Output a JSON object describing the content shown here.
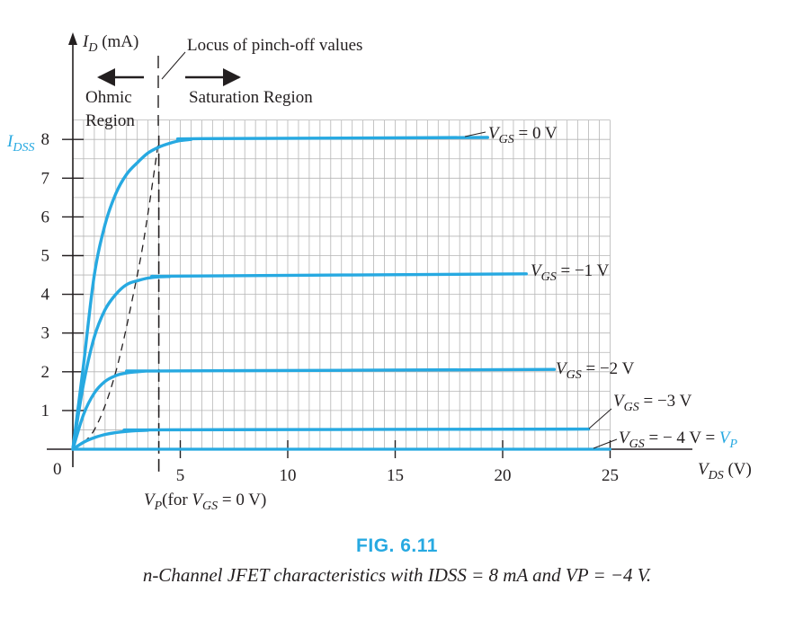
{
  "chart_data": {
    "type": "line",
    "x_axis": {
      "label_symbol": "V",
      "label_sub": "DS",
      "label_unit": " (V)",
      "ticks": [
        5,
        10,
        15,
        20,
        25
      ],
      "tick_labels": [
        "5",
        "10",
        "15",
        "20",
        "25"
      ],
      "range": [
        0,
        25
      ],
      "origin_label": "0"
    },
    "y_axis": {
      "label_symbol": "I",
      "label_sub": "D",
      "label_unit": " (mA)",
      "ticks": [
        1,
        2,
        3,
        4,
        5,
        6,
        7,
        8
      ],
      "tick_labels": [
        "1",
        "2",
        "3",
        "4",
        "5",
        "6",
        "7",
        "8"
      ],
      "range": [
        0,
        8
      ],
      "idss_label_main": "I",
      "idss_label_sub": "DSS"
    },
    "grid": true,
    "series": [
      {
        "name": "VGS = 0 V",
        "label_main": "V",
        "label_sub": "GS",
        "label_rest": " = 0 V",
        "vgs": 0,
        "saturation_current": 8,
        "x_end": 19.3,
        "x": [
          0,
          0.5,
          1,
          1.5,
          2,
          2.5,
          3,
          3.5,
          4,
          4.5,
          5,
          5.5,
          6,
          19.3
        ],
        "y": [
          0,
          2.2,
          4.5,
          5.8,
          6.6,
          7.1,
          7.4,
          7.65,
          7.8,
          7.9,
          7.97,
          8,
          8.02,
          8.05
        ]
      },
      {
        "name": "VGS = -1 V",
        "label_main": "V",
        "label_sub": "GS",
        "label_rest": " = −1 V",
        "vgs": -1,
        "saturation_current": 4.5,
        "x_end": 21.1,
        "x": [
          0,
          0.5,
          1,
          1.5,
          2,
          2.5,
          3,
          3.5,
          4,
          4.5,
          5,
          21.1
        ],
        "y": [
          0,
          1.7,
          2.9,
          3.6,
          4.0,
          4.25,
          4.35,
          4.42,
          4.45,
          4.46,
          4.47,
          4.53
        ]
      },
      {
        "name": "VGS = -2 V",
        "label_main": "V",
        "label_sub": "GS",
        "label_rest": " = −2 V",
        "vgs": -2,
        "saturation_current": 2,
        "x_end": 22.4,
        "x": [
          0,
          0.5,
          1,
          1.5,
          2,
          2.5,
          3,
          3.5,
          4,
          22.4
        ],
        "y": [
          0,
          0.9,
          1.45,
          1.75,
          1.9,
          1.97,
          2.0,
          2.02,
          2.02,
          2.06
        ]
      },
      {
        "name": "VGS = -3 V",
        "label_main": "V",
        "label_sub": "GS",
        "label_rest": " = −3 V",
        "vgs": -3,
        "saturation_current": 0.5,
        "x_end": 24.0,
        "x": [
          0,
          0.5,
          1,
          1.5,
          2,
          2.5,
          3,
          3.5,
          4,
          24.0
        ],
        "y": [
          0,
          0.18,
          0.3,
          0.38,
          0.43,
          0.46,
          0.48,
          0.49,
          0.5,
          0.52
        ]
      },
      {
        "name": "VGS = -4 V = VP",
        "label_main": "V",
        "label_sub": "GS",
        "label_rest": " = − 4 V = ",
        "label_vp_main": "V",
        "label_vp_sub": "P",
        "vgs": -4,
        "saturation_current": 0,
        "x_end": 25,
        "x": [
          0,
          25
        ],
        "y": [
          0,
          0
        ]
      }
    ],
    "pinch_off_locus": {
      "x": [
        0,
        1,
        2,
        3,
        3.5,
        4
      ],
      "y": [
        0,
        0.5,
        2,
        4.5,
        6.1,
        8
      ]
    },
    "vp_marker_x": 4,
    "annotations": {
      "locus": "Locus of pinch-off values",
      "ohmic_line1": "Ohmic",
      "ohmic_line2": "Region",
      "saturation": "Saturation Region",
      "vp_note_pre": "(for ",
      "vp_note_post": " = 0 V)"
    }
  },
  "figure": {
    "title": "FIG. 6.11",
    "caption": "n-Channel JFET characteristics with IDSS = 8 mA and VP = −4 V."
  },
  "colors": {
    "curve": "#27a9e1",
    "axis": "#231f20",
    "grid": "#aaaaaa",
    "accent_text": "#27a9e1"
  }
}
